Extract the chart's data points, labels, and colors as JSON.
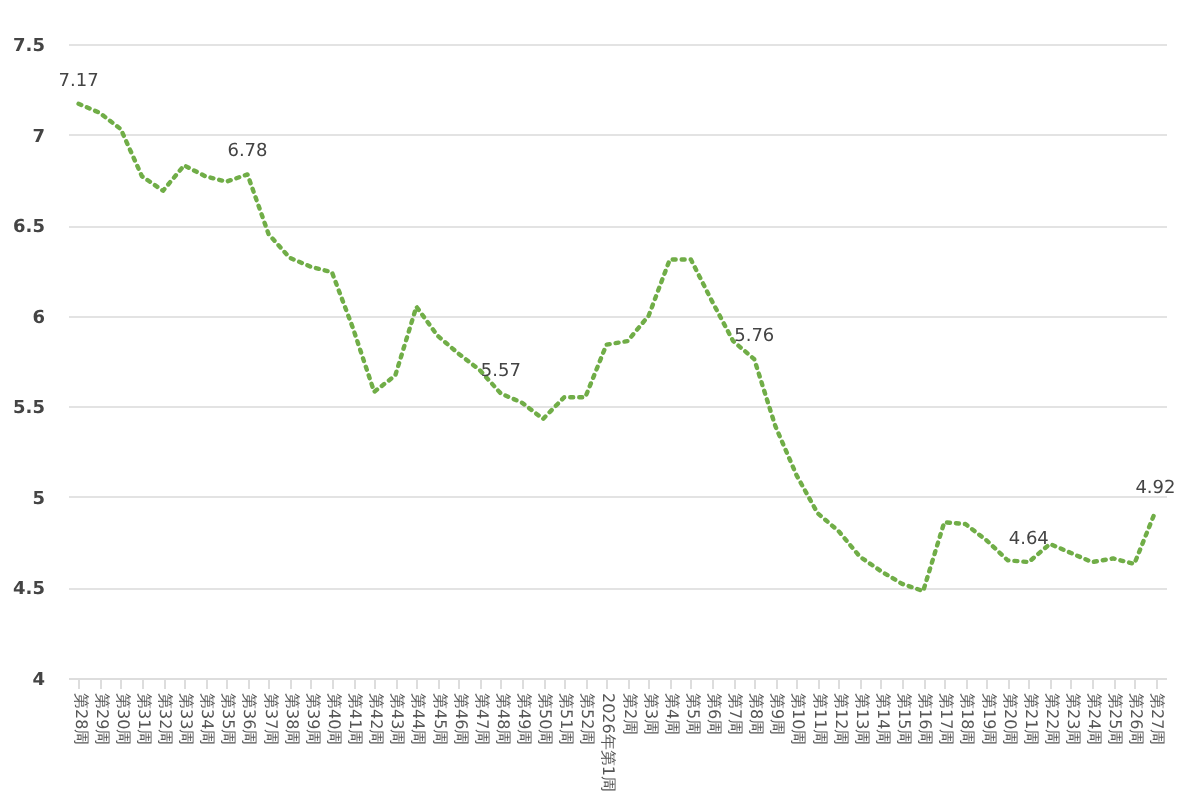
{
  "chart_data": {
    "type": "line",
    "categories": [
      "第28周",
      "第29周",
      "第30周",
      "第31周",
      "第32周",
      "第33周",
      "第34周",
      "第35周",
      "第36周",
      "第37周",
      "第38周",
      "第39周",
      "第40周",
      "第41周",
      "第42周",
      "第43周",
      "第44周",
      "第45周",
      "第46周",
      "第47周",
      "第48周",
      "第49周",
      "第50周",
      "第51周",
      "第52周",
      "2026年第1周",
      "第2周",
      "第3周",
      "第4周",
      "第5周",
      "第6周",
      "第7周",
      "第8周",
      "第9周",
      "第10周",
      "第11周",
      "第12周",
      "第13周",
      "第14周",
      "第15周",
      "第16周",
      "第17周",
      "第18周",
      "第19周",
      "第20周",
      "第21周",
      "第22周",
      "第23周",
      "第24周",
      "第25周",
      "第26周",
      "第27周"
    ],
    "series": [
      {
        "color": "#70ad47",
        "values": [
          7.17,
          7.12,
          7.03,
          6.77,
          6.69,
          6.83,
          6.77,
          6.74,
          6.78,
          6.45,
          6.32,
          6.27,
          6.24,
          5.93,
          5.58,
          5.67,
          6.05,
          5.89,
          5.79,
          5.7,
          5.57,
          5.52,
          5.43,
          5.55,
          5.55,
          5.84,
          5.86,
          6.0,
          6.31,
          6.31,
          6.08,
          5.86,
          5.76,
          5.39,
          5.12,
          4.91,
          4.81,
          4.67,
          4.59,
          4.52,
          4.48,
          4.86,
          4.85,
          4.76,
          4.65,
          4.64,
          4.74,
          4.69,
          4.64,
          4.66,
          4.63,
          4.92
        ],
        "value_labels": [
          "7.17",
          null,
          null,
          null,
          null,
          null,
          null,
          null,
          "6.78",
          null,
          null,
          null,
          null,
          null,
          null,
          null,
          null,
          null,
          null,
          null,
          "5.57",
          null,
          null,
          null,
          null,
          null,
          null,
          null,
          null,
          null,
          null,
          null,
          "5.76",
          null,
          null,
          null,
          null,
          null,
          null,
          null,
          null,
          null,
          null,
          null,
          null,
          "4.64",
          null,
          null,
          null,
          null,
          null,
          "4.92"
        ]
      }
    ],
    "ylim": [
      4,
      7.5
    ],
    "yticks": [
      4,
      4.5,
      5,
      5.5,
      6,
      6.5,
      7,
      7.5
    ],
    "grid": "y",
    "line_style": "dotted",
    "marker": "none"
  }
}
